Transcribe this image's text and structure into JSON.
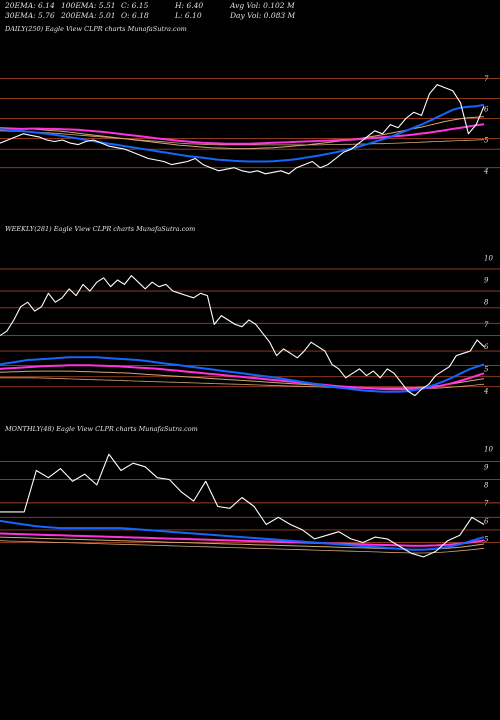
{
  "header": {
    "row1": [
      "20EMA: 6.14",
      "100EMA: 5.51",
      "C: 6.15",
      "H: 6.40",
      "Avg Vol: 0.102  M"
    ],
    "row2": [
      "30EMA: 5.76",
      "200EMA: 5.01",
      "O: 6.18",
      "L: 6.10",
      "Day Vol: 0.083  M"
    ]
  },
  "colors": {
    "background": "#000000",
    "price": "#ffffff",
    "ema_blue": "#1565ff",
    "ema_magenta": "#ff33dd",
    "ema_tan": "#d2a878",
    "levels": "#a0401e"
  },
  "chart_data": [
    {
      "type": "line",
      "title": "DAILY(250) Eagle  View  CLPR charts MunafaSutra.com",
      "y_ticks": [
        "7",
        "6",
        "5",
        "4"
      ],
      "y_tick_values": [
        7,
        6,
        5,
        4
      ],
      "ylim": [
        2.4,
        8.9
      ],
      "levels": [
        7.0,
        6.35,
        5.7,
        5.05,
        4.7,
        4.1
      ],
      "series": [
        {
          "values": [
            4.9,
            5.0,
            5.1,
            5.2,
            5.15,
            5.1,
            5.0,
            4.95,
            5.0,
            4.9,
            4.85,
            4.95,
            5.0,
            4.9,
            4.8,
            4.75,
            4.7,
            4.6,
            4.5,
            4.4,
            4.35,
            4.3,
            4.2,
            4.25,
            4.3,
            4.4,
            4.2,
            4.1,
            4.0,
            4.05,
            4.1,
            4.0,
            3.95,
            4.0,
            3.9,
            3.95,
            4.0,
            3.9,
            4.1,
            4.2,
            4.3,
            4.1,
            4.2,
            4.4,
            4.6,
            4.7,
            4.9,
            5.1,
            5.3,
            5.2,
            5.5,
            5.4,
            5.7,
            5.9,
            5.8,
            6.5,
            6.8,
            6.7,
            6.6,
            6.2,
            5.2,
            5.5,
            6.1
          ]
        },
        {
          "values": [
            5.35,
            5.33,
            5.31,
            5.29,
            5.26,
            5.23,
            5.2,
            5.17,
            5.13,
            5.09,
            5.05,
            5.0,
            4.96,
            4.92,
            4.88,
            4.84,
            4.8,
            4.76,
            4.72,
            4.68,
            4.64,
            4.6,
            4.56,
            4.52,
            4.48,
            4.45,
            4.42,
            4.39,
            4.36,
            4.34,
            4.32,
            4.31,
            4.3,
            4.3,
            4.3,
            4.31,
            4.33,
            4.35,
            4.38,
            4.42,
            4.46,
            4.5,
            4.55,
            4.6,
            4.66,
            4.72,
            4.79,
            4.86,
            4.94,
            5.02,
            5.1,
            5.2,
            5.3,
            5.4,
            5.5,
            5.62,
            5.74,
            5.86,
            5.98,
            6.05,
            6.08,
            6.1,
            6.14
          ]
        },
        {
          "values": [
            5.35,
            5.35,
            5.36,
            5.36,
            5.37,
            5.37,
            5.36,
            5.36,
            5.35,
            5.34,
            5.33,
            5.31,
            5.29,
            5.27,
            5.24,
            5.21,
            5.18,
            5.15,
            5.12,
            5.09,
            5.06,
            5.03,
            5.0,
            4.97,
            4.95,
            4.93,
            4.91,
            4.9,
            4.89,
            4.88,
            4.88,
            4.88,
            4.88,
            4.89,
            4.9,
            4.91,
            4.92,
            4.93,
            4.94,
            4.95,
            4.96,
            4.97,
            4.98,
            4.99,
            5.0,
            5.01,
            5.03,
            5.05,
            5.07,
            5.09,
            5.11,
            5.13,
            5.15,
            5.18,
            5.21,
            5.24,
            5.28,
            5.32,
            5.36,
            5.4,
            5.44,
            5.48,
            5.51
          ]
        },
        {
          "values": [
            5.4,
            5.39,
            5.38,
            5.37,
            5.36,
            5.34,
            5.32,
            5.3,
            5.28,
            5.25,
            5.22,
            5.19,
            5.16,
            5.13,
            5.1,
            5.07,
            5.04,
            5.01,
            4.98,
            4.95,
            4.92,
            4.89,
            4.86,
            4.83,
            4.81,
            4.79,
            4.77,
            4.75,
            4.74,
            4.73,
            4.72,
            4.72,
            4.72,
            4.73,
            4.74,
            4.75,
            4.77,
            4.79,
            4.81,
            4.83,
            4.86,
            4.89,
            4.92,
            4.95,
            4.98,
            5.01,
            5.05,
            5.09,
            5.13,
            5.17,
            5.22,
            5.27,
            5.32,
            5.37,
            5.42,
            5.48,
            5.54,
            5.6,
            5.65,
            5.69,
            5.72,
            5.74,
            5.76
          ]
        },
        {
          "values": [
            5.3,
            5.29,
            5.28,
            5.27,
            5.26,
            5.25,
            5.24,
            5.22,
            5.2,
            5.18,
            5.16,
            5.14,
            5.12,
            5.1,
            5.08,
            5.06,
            5.04,
            5.02,
            5.0,
            4.98,
            4.96,
            4.94,
            4.92,
            4.9,
            4.88,
            4.87,
            4.86,
            4.85,
            4.84,
            4.84,
            4.84,
            4.84,
            4.84,
            4.84,
            4.84,
            4.84,
            4.84,
            4.84,
            4.84,
            4.84,
            4.84,
            4.84,
            4.85,
            4.85,
            4.86,
            4.86,
            4.87,
            4.87,
            4.88,
            4.88,
            4.89,
            4.9,
            4.91,
            4.92,
            4.93,
            4.94,
            4.95,
            4.96,
            4.97,
            4.98,
            4.99,
            5.0,
            5.01
          ]
        }
      ]
    },
    {
      "type": "line",
      "title": "WEEKLY(281) Eagle  View  CLPR charts MunafaSutra.com",
      "y_ticks": [
        "10",
        "9",
        "8",
        "7",
        "6",
        "5",
        "4"
      ],
      "y_tick_values": [
        10,
        9,
        8,
        7,
        6,
        5,
        4
      ],
      "ylim": [
        2.7,
        11.7
      ],
      "levels": [
        9.5,
        8.5,
        7.75,
        7.05,
        6.5,
        5.8,
        5.15,
        4.65,
        4.2
      ],
      "series": [
        {
          "values": [
            6.5,
            6.7,
            7.2,
            7.8,
            8.0,
            7.6,
            7.8,
            8.4,
            8.0,
            8.2,
            8.6,
            8.3,
            8.8,
            8.5,
            8.9,
            9.1,
            8.7,
            9.0,
            8.8,
            9.2,
            8.9,
            8.6,
            8.9,
            8.7,
            8.8,
            8.5,
            8.4,
            8.3,
            8.2,
            8.4,
            8.3,
            7.0,
            7.4,
            7.2,
            7.0,
            6.9,
            7.2,
            7.0,
            6.6,
            6.2,
            5.6,
            5.9,
            5.7,
            5.5,
            5.8,
            6.2,
            6.0,
            5.8,
            5.2,
            5.0,
            4.6,
            4.8,
            5.0,
            4.7,
            4.9,
            4.6,
            5.0,
            4.8,
            4.4,
            4.0,
            3.8,
            4.1,
            4.3,
            4.7,
            4.9,
            5.1,
            5.6,
            5.7,
            5.8,
            6.3,
            6.0
          ]
        },
        {
          "values": [
            5.2,
            5.25,
            5.3,
            5.35,
            5.4,
            5.42,
            5.44,
            5.46,
            5.48,
            5.5,
            5.52,
            5.52,
            5.52,
            5.52,
            5.52,
            5.5,
            5.48,
            5.46,
            5.44,
            5.42,
            5.4,
            5.36,
            5.32,
            5.28,
            5.24,
            5.2,
            5.16,
            5.12,
            5.08,
            5.04,
            5.0,
            4.96,
            4.92,
            4.88,
            4.84,
            4.8,
            4.76,
            4.72,
            4.68,
            4.64,
            4.6,
            4.55,
            4.5,
            4.45,
            4.4,
            4.35,
            4.3,
            4.25,
            4.2,
            4.16,
            4.12,
            4.08,
            4.05,
            4.02,
            4.0,
            3.98,
            3.97,
            3.97,
            3.98,
            4.0,
            4.05,
            4.1,
            4.2,
            4.3,
            4.42,
            4.55,
            4.7,
            4.85,
            5.0,
            5.1,
            5.2
          ]
        },
        {
          "values": [
            5.0,
            5.02,
            5.04,
            5.06,
            5.08,
            5.1,
            5.12,
            5.13,
            5.14,
            5.15,
            5.16,
            5.16,
            5.16,
            5.16,
            5.15,
            5.14,
            5.13,
            5.12,
            5.1,
            5.08,
            5.06,
            5.04,
            5.02,
            5.0,
            4.97,
            4.94,
            4.91,
            4.88,
            4.85,
            4.82,
            4.79,
            4.76,
            4.73,
            4.7,
            4.67,
            4.64,
            4.61,
            4.58,
            4.55,
            4.52,
            4.49,
            4.46,
            4.43,
            4.4,
            4.37,
            4.34,
            4.31,
            4.28,
            4.25,
            4.22,
            4.2,
            4.18,
            4.16,
            4.14,
            4.12,
            4.1,
            4.09,
            4.08,
            4.08,
            4.08,
            4.1,
            4.12,
            4.15,
            4.2,
            4.26,
            4.33,
            4.41,
            4.5,
            4.6,
            4.7,
            4.8
          ]
        },
        {
          "values": [
            4.85,
            4.86,
            4.87,
            4.88,
            4.89,
            4.9,
            4.9,
            4.9,
            4.9,
            4.9,
            4.9,
            4.89,
            4.88,
            4.87,
            4.86,
            4.85,
            4.84,
            4.83,
            4.82,
            4.8,
            4.78,
            4.76,
            4.74,
            4.72,
            4.7,
            4.68,
            4.66,
            4.64,
            4.62,
            4.6,
            4.58,
            4.56,
            4.54,
            4.52,
            4.5,
            4.48,
            4.46,
            4.44,
            4.42,
            4.4,
            4.38,
            4.36,
            4.34,
            4.32,
            4.3,
            4.28,
            4.26,
            4.24,
            4.22,
            4.2,
            4.19,
            4.18,
            4.17,
            4.16,
            4.15,
            4.14,
            4.14,
            4.14,
            4.14,
            4.15,
            4.16,
            4.18,
            4.2,
            4.23,
            4.27,
            4.31,
            4.36,
            4.41,
            4.46,
            4.51,
            4.56
          ]
        },
        {
          "values": [
            4.6,
            4.6,
            4.6,
            4.6,
            4.6,
            4.6,
            4.59,
            4.58,
            4.57,
            4.56,
            4.55,
            4.54,
            4.53,
            4.52,
            4.51,
            4.5,
            4.49,
            4.48,
            4.47,
            4.46,
            4.45,
            4.44,
            4.43,
            4.42,
            4.41,
            4.4,
            4.39,
            4.38,
            4.37,
            4.36,
            4.35,
            4.34,
            4.33,
            4.32,
            4.31,
            4.3,
            4.29,
            4.28,
            4.27,
            4.26,
            4.25,
            4.24,
            4.23,
            4.22,
            4.21,
            4.2,
            4.19,
            4.18,
            4.17,
            4.16,
            4.15,
            4.14,
            4.13,
            4.12,
            4.11,
            4.1,
            4.1,
            4.1,
            4.1,
            4.1,
            4.1,
            4.11,
            4.12,
            4.13,
            4.15,
            4.17,
            4.19,
            4.22,
            4.25,
            4.28,
            4.31
          ]
        }
      ]
    },
    {
      "type": "line",
      "title": "MONTHLY(48) Eagle  View  CLPR charts MunafaSutra.com",
      "y_ticks": [
        "10",
        "9",
        "8",
        "7",
        "6",
        "5"
      ],
      "y_tick_values": [
        10,
        9,
        8,
        7,
        6,
        5
      ],
      "ylim": [
        0.5,
        11.6
      ],
      "levels": [
        9.3,
        8.3,
        7.0,
        6.2,
        5.5,
        4.8
      ],
      "series": [
        {
          "values": [
            6.5,
            6.5,
            6.5,
            8.8,
            8.4,
            8.9,
            8.2,
            8.6,
            8.0,
            9.7,
            8.8,
            9.2,
            9.0,
            8.4,
            8.3,
            7.6,
            7.1,
            8.2,
            6.8,
            6.7,
            7.3,
            6.8,
            5.8,
            6.2,
            5.8,
            5.5,
            5.0,
            5.2,
            5.4,
            5.0,
            4.8,
            5.1,
            5.0,
            4.6,
            4.2,
            4.0,
            4.3,
            4.9,
            5.2,
            6.2,
            5.8
          ]
        },
        {
          "values": [
            6.0,
            5.9,
            5.8,
            5.7,
            5.65,
            5.6,
            5.6,
            5.6,
            5.6,
            5.6,
            5.6,
            5.55,
            5.5,
            5.45,
            5.4,
            5.35,
            5.3,
            5.25,
            5.2,
            5.15,
            5.1,
            5.05,
            5.0,
            4.95,
            4.9,
            4.85,
            4.8,
            4.75,
            4.7,
            4.65,
            4.6,
            4.55,
            4.5,
            4.45,
            4.4,
            4.4,
            4.45,
            4.55,
            4.7,
            4.9,
            5.1
          ]
        },
        {
          "values": [
            5.3,
            5.28,
            5.26,
            5.24,
            5.22,
            5.2,
            5.18,
            5.16,
            5.14,
            5.12,
            5.1,
            5.08,
            5.06,
            5.04,
            5.02,
            5.0,
            4.98,
            4.96,
            4.94,
            4.92,
            4.9,
            4.88,
            4.86,
            4.84,
            4.82,
            4.8,
            4.78,
            4.76,
            4.74,
            4.72,
            4.7,
            4.68,
            4.66,
            4.64,
            4.62,
            4.62,
            4.64,
            4.68,
            4.74,
            4.82,
            4.92
          ]
        },
        {
          "values": [
            5.1,
            5.08,
            5.06,
            5.04,
            5.02,
            5.0,
            4.98,
            4.96,
            4.94,
            4.92,
            4.9,
            4.88,
            4.86,
            4.84,
            4.82,
            4.8,
            4.78,
            4.76,
            4.74,
            4.72,
            4.7,
            4.68,
            4.66,
            4.64,
            4.62,
            4.6,
            4.58,
            4.56,
            4.54,
            4.52,
            4.5,
            4.48,
            4.46,
            4.44,
            4.42,
            4.42,
            4.44,
            4.48,
            4.54,
            4.62,
            4.72
          ]
        },
        {
          "values": [
            4.9,
            4.88,
            4.86,
            4.84,
            4.82,
            4.8,
            4.78,
            4.76,
            4.74,
            4.72,
            4.7,
            4.68,
            4.66,
            4.64,
            4.62,
            4.6,
            4.58,
            4.56,
            4.54,
            4.52,
            4.5,
            4.48,
            4.46,
            4.44,
            4.42,
            4.4,
            4.38,
            4.36,
            4.34,
            4.32,
            4.3,
            4.28,
            4.26,
            4.24,
            4.22,
            4.22,
            4.24,
            4.28,
            4.34,
            4.4,
            4.48
          ]
        }
      ]
    }
  ]
}
